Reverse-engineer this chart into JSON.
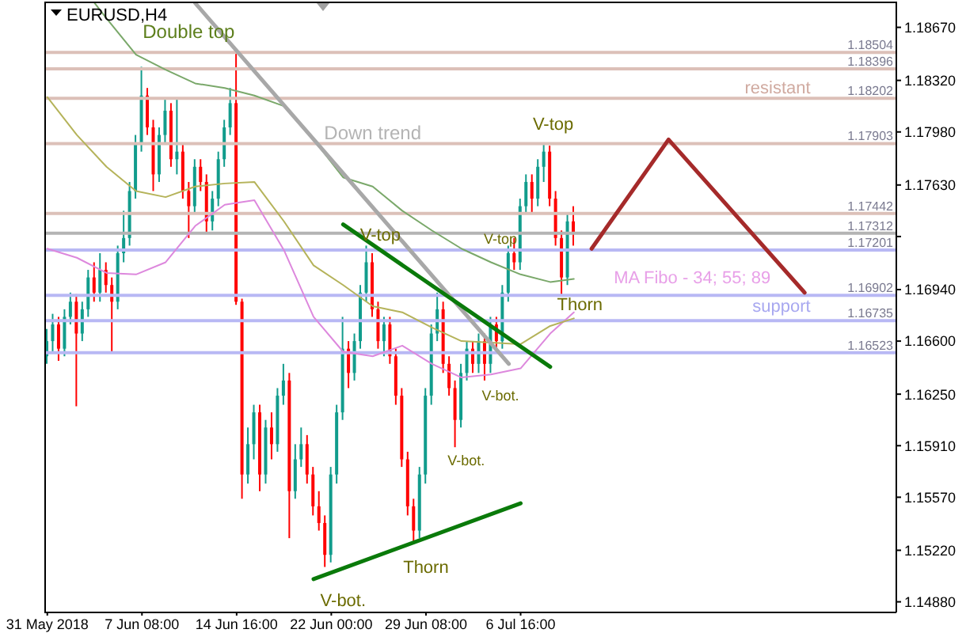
{
  "chart_data": {
    "type": "candlestick",
    "title": "EURUSD,H4",
    "categories": [
      "31 May 2018",
      null,
      null,
      null,
      null,
      null,
      null,
      null,
      null,
      null,
      null,
      null,
      null,
      null,
      null,
      null,
      "7 Jun 08:00",
      null,
      null,
      null,
      null,
      null,
      null,
      null,
      null,
      null,
      null,
      null,
      null,
      null,
      null,
      null,
      "14 Jun 16:00",
      null,
      null,
      null,
      null,
      null,
      null,
      null,
      null,
      null,
      null,
      null,
      null,
      null,
      null,
      null,
      "22 Jun 00:00",
      null,
      null,
      null,
      null,
      null,
      null,
      null,
      null,
      null,
      null,
      null,
      null,
      null,
      null,
      null,
      "29 Jun 08:00",
      null,
      null,
      null,
      null,
      null,
      null,
      null,
      null,
      null,
      null,
      null,
      null,
      null,
      null,
      null,
      "6 Jul 16:00",
      null,
      null,
      null,
      null,
      null,
      null,
      null,
      null,
      null,
      null,
      null,
      null,
      null,
      null,
      null,
      null,
      null,
      null,
      null,
      null,
      null,
      null,
      null,
      null,
      null,
      null,
      null,
      null,
      null,
      null,
      null,
      null,
      null,
      null,
      null,
      null,
      null,
      null,
      null,
      null,
      null,
      null,
      null,
      null,
      null,
      null,
      null,
      null,
      null,
      null,
      null,
      null,
      null,
      null,
      null,
      null,
      null,
      null,
      null,
      null,
      null,
      null,
      null
    ],
    "ohlc": [
      [
        1.165,
        1.1668,
        1.1645,
        1.166
      ],
      [
        1.166,
        1.1678,
        1.1653,
        1.1671
      ],
      [
        1.1671,
        1.1676,
        1.1647,
        1.1655
      ],
      [
        1.1655,
        1.1681,
        1.165,
        1.1676
      ],
      [
        1.1676,
        1.1692,
        1.1671,
        1.1686
      ],
      [
        1.1686,
        1.1691,
        1.1617,
        1.1665
      ],
      [
        1.1665,
        1.1686,
        1.166,
        1.1681
      ],
      [
        1.1681,
        1.1707,
        1.1676,
        1.1702
      ],
      [
        1.1702,
        1.1712,
        1.1686,
        1.1692
      ],
      [
        1.1692,
        1.1718,
        1.1686,
        1.1707
      ],
      [
        1.1707,
        1.1712,
        1.1692,
        1.1697
      ],
      [
        1.1697,
        1.1702,
        1.1653,
        1.1686
      ],
      [
        1.1686,
        1.1723,
        1.1681,
        1.1718
      ],
      [
        1.1718,
        1.1746,
        1.1712,
        1.1728
      ],
      [
        1.1728,
        1.1765,
        1.1723,
        1.1759
      ],
      [
        1.1759,
        1.1796,
        1.1754,
        1.1791
      ],
      [
        1.1791,
        1.1841,
        1.1785,
        1.1822
      ],
      [
        1.1822,
        1.1827,
        1.1796,
        1.1801
      ],
      [
        1.1801,
        1.1806,
        1.1759,
        1.177
      ],
      [
        1.177,
        1.1801,
        1.1765,
        1.1796
      ],
      [
        1.1796,
        1.182,
        1.1791,
        1.1812
      ],
      [
        1.1812,
        1.1817,
        1.1775,
        1.178
      ],
      [
        1.178,
        1.182,
        1.177,
        1.1785
      ],
      [
        1.1785,
        1.1791,
        1.1754,
        1.1759
      ],
      [
        1.1759,
        1.1765,
        1.1728,
        1.1749
      ],
      [
        1.1749,
        1.178,
        1.1744,
        1.1775
      ],
      [
        1.1775,
        1.178,
        1.1759,
        1.1765
      ],
      [
        1.1765,
        1.177,
        1.1731,
        1.1739
      ],
      [
        1.1739,
        1.1759,
        1.1733,
        1.1754
      ],
      [
        1.1754,
        1.1785,
        1.1749,
        1.178
      ],
      [
        1.178,
        1.1806,
        1.1775,
        1.1801
      ],
      [
        1.1801,
        1.1827,
        1.1796,
        1.1817
      ],
      [
        1.1817,
        1.185,
        1.1684,
        1.1686
      ],
      [
        1.1686,
        1.1688,
        1.1556,
        1.1572
      ],
      [
        1.1572,
        1.1603,
        1.1566,
        1.1592
      ],
      [
        1.1592,
        1.1618,
        1.1582,
        1.1613
      ],
      [
        1.1613,
        1.1618,
        1.1561,
        1.1572
      ],
      [
        1.1572,
        1.1608,
        1.1566,
        1.1603
      ],
      [
        1.1603,
        1.1613,
        1.1582,
        1.1592
      ],
      [
        1.1592,
        1.1629,
        1.1587,
        1.1624
      ],
      [
        1.1624,
        1.1645,
        1.1618,
        1.1634
      ],
      [
        1.1634,
        1.1639,
        1.153,
        1.1561
      ],
      [
        1.1561,
        1.1592,
        1.1556,
        1.1582
      ],
      [
        1.1582,
        1.1603,
        1.1577,
        1.1592
      ],
      [
        1.1592,
        1.1598,
        1.1566,
        1.1572
      ],
      [
        1.1572,
        1.1577,
        1.1545,
        1.1551
      ],
      [
        1.1551,
        1.1561,
        1.1535,
        1.154
      ],
      [
        1.154,
        1.1545,
        1.1511,
        1.1519
      ],
      [
        1.1519,
        1.1577,
        1.1514,
        1.1572
      ],
      [
        1.1572,
        1.1618,
        1.1566,
        1.1613
      ],
      [
        1.1613,
        1.1676,
        1.1608,
        1.1655
      ],
      [
        1.1655,
        1.166,
        1.1629,
        1.1639
      ],
      [
        1.1639,
        1.1665,
        1.1634,
        1.166
      ],
      [
        1.166,
        1.1697,
        1.1655,
        1.1692
      ],
      [
        1.1692,
        1.1723,
        1.1686,
        1.1712
      ],
      [
        1.1712,
        1.1718,
        1.1676,
        1.1681
      ],
      [
        1.1681,
        1.1686,
        1.1655,
        1.166
      ],
      [
        1.166,
        1.1676,
        1.165,
        1.1671
      ],
      [
        1.1671,
        1.1676,
        1.1645,
        1.165
      ],
      [
        1.165,
        1.1655,
        1.1618,
        1.1624
      ],
      [
        1.1624,
        1.1629,
        1.1577,
        1.1582
      ],
      [
        1.1582,
        1.1587,
        1.1545,
        1.1551
      ],
      [
        1.1551,
        1.1556,
        1.1528,
        1.1535
      ],
      [
        1.1535,
        1.1577,
        1.153,
        1.1572
      ],
      [
        1.1572,
        1.1629,
        1.1566,
        1.1624
      ],
      [
        1.1624,
        1.1671,
        1.1618,
        1.1665
      ],
      [
        1.1665,
        1.1692,
        1.166,
        1.1681
      ],
      [
        1.1681,
        1.1686,
        1.1639,
        1.1645
      ],
      [
        1.1645,
        1.165,
        1.1624,
        1.1629
      ],
      [
        1.1629,
        1.1634,
        1.159,
        1.1608
      ],
      [
        1.1608,
        1.1645,
        1.1603,
        1.1639
      ],
      [
        1.1639,
        1.166,
        1.1634,
        1.1655
      ],
      [
        1.1655,
        1.166,
        1.1639,
        1.1645
      ],
      [
        1.1645,
        1.1665,
        1.1639,
        1.166
      ],
      [
        1.166,
        1.1665,
        1.1634,
        1.1645
      ],
      [
        1.1645,
        1.1676,
        1.1639,
        1.1671
      ],
      [
        1.1671,
        1.1676,
        1.1655,
        1.166
      ],
      [
        1.166,
        1.1697,
        1.1655,
        1.1692
      ],
      [
        1.1692,
        1.1723,
        1.1686,
        1.1718
      ],
      [
        1.1718,
        1.1728,
        1.1707,
        1.1712
      ],
      [
        1.1712,
        1.1754,
        1.1707,
        1.1749
      ],
      [
        1.1749,
        1.177,
        1.1744,
        1.1765
      ],
      [
        1.1765,
        1.177,
        1.1744,
        1.1754
      ],
      [
        1.1754,
        1.178,
        1.1749,
        1.1775
      ],
      [
        1.1775,
        1.1791,
        1.1765,
        1.1785
      ],
      [
        1.1785,
        1.1789,
        1.1749,
        1.1754
      ],
      [
        1.1754,
        1.1759,
        1.1723,
        1.1728
      ],
      [
        1.1728,
        1.1733,
        1.169,
        1.1702
      ],
      [
        1.1702,
        1.1744,
        1.1697,
        1.1739
      ],
      [
        1.1739,
        1.1749,
        1.1723,
        1.17312
      ],
      null,
      null,
      null,
      null,
      null,
      null,
      null,
      null,
      null,
      null,
      null,
      null,
      null,
      null,
      null,
      null,
      null,
      null,
      null,
      null,
      null,
      null,
      null,
      null,
      null,
      null,
      null,
      null,
      null,
      null,
      null,
      null,
      null,
      null,
      null,
      null,
      null,
      null,
      null,
      null,
      null,
      null,
      null,
      null,
      null,
      null,
      null,
      null,
      null,
      null,
      null,
      null,
      null,
      null
    ],
    "colors": [
      "#119c8c",
      "#119c8c",
      "#ff0000",
      "#119c8c",
      "#119c8c",
      "#ff0000",
      "#119c8c",
      "#119c8c",
      "#ff0000",
      "#119c8c",
      "#ff0000",
      "#ff0000",
      "#119c8c",
      "#119c8c",
      "#119c8c",
      "#119c8c",
      "#119c8c",
      "#ff0000",
      "#ff0000",
      "#119c8c",
      "#119c8c",
      "#ff0000",
      "#119c8c",
      "#ff0000",
      "#ff0000",
      "#119c8c",
      "#ff0000",
      "#ff0000",
      "#119c8c",
      "#119c8c",
      "#119c8c",
      "#119c8c",
      "#ff0000",
      "#ff0000",
      "#119c8c",
      "#119c8c",
      "#ff0000",
      "#119c8c",
      "#ff0000",
      "#119c8c",
      "#119c8c",
      "#ff0000",
      "#119c8c",
      "#119c8c",
      "#ff0000",
      "#ff0000",
      "#ff0000",
      "#ff0000",
      "#119c8c",
      "#119c8c",
      "#119c8c",
      "#ff0000",
      "#119c8c",
      "#119c8c",
      "#119c8c",
      "#ff0000",
      "#ff0000",
      "#119c8c",
      "#ff0000",
      "#ff0000",
      "#ff0000",
      "#ff0000",
      "#ff0000",
      "#119c8c",
      "#119c8c",
      "#119c8c",
      "#119c8c",
      "#ff0000",
      "#ff0000",
      "#ff0000",
      "#119c8c",
      "#119c8c",
      "#ff0000",
      "#119c8c",
      "#ff0000",
      "#119c8c",
      "#ff0000",
      "#119c8c",
      "#119c8c",
      "#ff0000",
      "#119c8c",
      "#119c8c",
      "#ff0000",
      "#119c8c",
      "#119c8c",
      "#ff0000",
      "#ff0000",
      "#ff0000",
      "#119c8c",
      "#ff0000",
      null,
      null,
      null,
      null,
      null,
      null,
      null,
      null,
      null,
      null,
      null,
      null,
      null,
      null,
      null,
      null,
      null,
      null,
      null,
      null,
      null,
      null,
      null,
      null,
      null,
      null,
      null,
      null,
      null,
      null,
      null,
      null,
      null,
      null,
      null,
      null,
      null,
      null,
      null,
      null,
      null,
      null,
      null,
      null,
      null,
      null,
      null,
      null,
      null,
      null,
      null,
      null,
      null,
      null
    ],
    "series": [
      {
        "type": "line",
        "color": "#dd88dd",
        "values": [
          1.1721,
          null,
          null,
          null,
          null,
          1.1715,
          null,
          null,
          null,
          null,
          1.1705,
          null,
          null,
          null,
          null,
          1.1704,
          null,
          null,
          null,
          null,
          1.1712,
          null,
          null,
          null,
          null,
          1.1736,
          null,
          null,
          null,
          null,
          1.175,
          null,
          null,
          null,
          null,
          1.1753,
          null,
          null,
          null,
          null,
          1.172,
          null,
          null,
          null,
          null,
          1.1676,
          null,
          null,
          null,
          null,
          1.1653,
          null,
          null,
          null,
          null,
          1.165,
          null,
          null,
          null,
          null,
          1.1657,
          null,
          null,
          null,
          null,
          1.1645,
          null,
          null,
          null,
          null,
          1.1636,
          null,
          null,
          null,
          null,
          1.1638,
          null,
          null,
          null,
          null,
          1.1642,
          null,
          null,
          null,
          null,
          1.1665,
          null,
          null,
          null,
          1.1679,
          null,
          null,
          null,
          null,
          null,
          null,
          null,
          null,
          null,
          null,
          null,
          null,
          null,
          null,
          null,
          null,
          null,
          null,
          null,
          null,
          null,
          null,
          null,
          null,
          null,
          null,
          null,
          null,
          null,
          null,
          null,
          null,
          null,
          null,
          null,
          null,
          null,
          null,
          null,
          null,
          null,
          null,
          null,
          null,
          null,
          null,
          null,
          null,
          null,
          null,
          null,
          null,
          null,
          null
        ]
      },
      {
        "type": "line",
        "color": "#b5b35a",
        "values": [
          1.1821,
          null,
          null,
          null,
          null,
          1.1796,
          null,
          null,
          null,
          null,
          1.1775,
          null,
          null,
          null,
          null,
          1.1759,
          null,
          null,
          null,
          null,
          1.1755,
          null,
          null,
          null,
          null,
          1.1762,
          null,
          null,
          null,
          null,
          1.1764,
          null,
          null,
          null,
          null,
          1.1765,
          null,
          null,
          null,
          null,
          1.1739,
          null,
          null,
          null,
          null,
          1.171,
          null,
          null,
          null,
          null,
          1.1697,
          null,
          null,
          null,
          null,
          1.1683,
          null,
          null,
          null,
          null,
          1.1679,
          null,
          null,
          null,
          null,
          1.1669,
          null,
          null,
          null,
          null,
          1.166,
          null,
          null,
          null,
          null,
          1.1659,
          null,
          null,
          null,
          null,
          1.1658,
          null,
          null,
          null,
          null,
          1.167,
          null,
          null,
          null,
          1.1675,
          null,
          null,
          null,
          null,
          null,
          null,
          null,
          null,
          null,
          null,
          null,
          null,
          null,
          null,
          null,
          null,
          null,
          null,
          null,
          null,
          null,
          null,
          null,
          null,
          null,
          null,
          null,
          null,
          null,
          null,
          null,
          null,
          null,
          null,
          null,
          null,
          null,
          null,
          null,
          null,
          null,
          null,
          null,
          null,
          null,
          null,
          null,
          null,
          null,
          null,
          null,
          null,
          null,
          null
        ]
      },
      {
        "type": "line",
        "color": "#7aa86a",
        "values": [
          null,
          null,
          null,
          null,
          null,
          null,
          null,
          null,
          1.1883,
          null,
          1.1873,
          null,
          null,
          null,
          null,
          1.1849,
          null,
          null,
          null,
          null,
          1.1839,
          null,
          null,
          null,
          null,
          1.183,
          null,
          null,
          null,
          null,
          1.1827,
          null,
          null,
          null,
          null,
          1.1822,
          null,
          null,
          null,
          null,
          1.1815,
          null,
          null,
          null,
          null,
          1.1793,
          null,
          null,
          null,
          null,
          1.1768,
          null,
          null,
          null,
          null,
          1.1762,
          null,
          null,
          null,
          null,
          1.1746,
          null,
          null,
          null,
          null,
          1.1733,
          null,
          null,
          null,
          null,
          1.1721,
          null,
          null,
          null,
          null,
          1.1712,
          null,
          null,
          null,
          null,
          1.1704,
          null,
          null,
          null,
          null,
          1.1699,
          null,
          null,
          null,
          1.1701,
          null,
          null,
          null,
          null,
          null,
          null,
          null,
          null,
          null,
          null,
          null,
          null,
          null,
          null,
          null,
          null,
          null,
          null,
          null,
          null,
          null,
          null,
          null,
          null,
          null,
          null,
          null,
          null,
          null,
          null,
          null,
          null,
          null,
          null,
          null,
          null,
          null,
          null,
          null,
          null,
          null,
          null,
          null,
          null,
          null,
          null,
          null,
          null,
          null,
          null,
          null,
          null,
          null,
          null
        ]
      },
      {
        "type": "line",
        "color": "#a8a8a8",
        "values": [
          null,
          null,
          null,
          null,
          null,
          null,
          null,
          null,
          null,
          null,
          null,
          null,
          null,
          null,
          null,
          null,
          null,
          null,
          null,
          null,
          null,
          null,
          null,
          null,
          null,
          1.1883,
          null,
          null,
          null,
          null,
          null,
          null,
          null,
          null,
          null,
          null,
          null,
          null,
          null,
          null,
          null,
          null,
          null,
          null,
          null,
          null,
          null,
          null,
          null,
          null,
          null,
          null,
          null,
          null,
          null,
          null,
          null,
          null,
          null,
          null,
          null,
          null,
          null,
          null,
          null,
          null,
          null,
          null,
          null,
          null,
          null,
          null,
          null,
          null,
          null,
          null,
          null,
          null,
          1.1645,
          null,
          null,
          null,
          null,
          null,
          null,
          null,
          null,
          null,
          null,
          null,
          null,
          null,
          null,
          null,
          null,
          null,
          null,
          null,
          null,
          null,
          null,
          null,
          null,
          null,
          null,
          null,
          null,
          null,
          null,
          null,
          null,
          null,
          null,
          null,
          null,
          null,
          null,
          null,
          null,
          null,
          null,
          null,
          null,
          null,
          null,
          null,
          null,
          null,
          null,
          null,
          null,
          null,
          null,
          null,
          null,
          null,
          null,
          null,
          null,
          null,
          null,
          null,
          null,
          null
        ]
      },
      {
        "type": "line",
        "color": "#0a7a0a",
        "values": [
          null,
          null,
          null,
          null,
          null,
          null,
          null,
          null,
          null,
          null,
          null,
          null,
          null,
          null,
          null,
          null,
          null,
          null,
          null,
          null,
          null,
          null,
          null,
          null,
          null,
          null,
          null,
          null,
          null,
          null,
          null,
          null,
          null,
          null,
          null,
          null,
          null,
          null,
          null,
          null,
          null,
          null,
          null,
          null,
          null,
          null,
          null,
          null,
          null,
          null,
          1.1737,
          null,
          null,
          null,
          null,
          null,
          null,
          null,
          null,
          null,
          null,
          null,
          null,
          null,
          null,
          null,
          null,
          null,
          null,
          null,
          null,
          null,
          null,
          null,
          null,
          null,
          null,
          null,
          null,
          null,
          null,
          null,
          null,
          null,
          null,
          1.1643,
          null,
          null,
          null,
          null,
          null,
          null,
          null,
          null,
          null,
          null,
          null,
          null,
          null,
          null,
          null,
          null,
          null,
          null,
          null,
          null,
          null,
          null,
          null,
          null,
          null,
          null,
          null,
          null,
          null,
          null,
          null,
          null,
          null,
          null,
          null,
          null,
          null,
          null,
          null,
          null,
          null,
          null,
          null,
          null,
          null,
          null,
          null,
          null,
          null,
          null,
          null,
          null,
          null,
          null,
          null,
          null,
          null,
          null
        ]
      },
      {
        "type": "line",
        "color": "#0a7a0a",
        "values": [
          null,
          null,
          null,
          null,
          null,
          null,
          null,
          null,
          null,
          null,
          null,
          null,
          null,
          null,
          null,
          null,
          null,
          null,
          null,
          null,
          null,
          null,
          null,
          null,
          null,
          null,
          null,
          null,
          null,
          null,
          null,
          null,
          null,
          null,
          null,
          null,
          null,
          null,
          null,
          null,
          null,
          null,
          null,
          null,
          null,
          1.1503,
          null,
          null,
          null,
          null,
          null,
          null,
          null,
          null,
          null,
          null,
          null,
          null,
          null,
          null,
          null,
          null,
          null,
          null,
          null,
          null,
          null,
          null,
          null,
          null,
          null,
          null,
          null,
          null,
          null,
          null,
          null,
          null,
          null,
          null,
          1.1553,
          null,
          null,
          null,
          null,
          null,
          null,
          null,
          null,
          null,
          null,
          null,
          null,
          null,
          null,
          null,
          null,
          null,
          null,
          null,
          null,
          null,
          null,
          null,
          null,
          null,
          null,
          null,
          null,
          null,
          null,
          null,
          null,
          null,
          null,
          null,
          null,
          null,
          null,
          null,
          null,
          null,
          null,
          null,
          null,
          null,
          null,
          null,
          null,
          null,
          null,
          null,
          null,
          null,
          null,
          null,
          null,
          null,
          null,
          null,
          null,
          null,
          null,
          null
        ]
      },
      {
        "type": "line",
        "color": "#a52a2a",
        "values": [
          null,
          null,
          null,
          null,
          null,
          null,
          null,
          null,
          null,
          null,
          null,
          null,
          null,
          null,
          null,
          null,
          null,
          null,
          null,
          null,
          null,
          null,
          null,
          null,
          null,
          null,
          null,
          null,
          null,
          null,
          null,
          null,
          null,
          null,
          null,
          null,
          null,
          null,
          null,
          null,
          null,
          null,
          null,
          null,
          null,
          null,
          null,
          null,
          null,
          null,
          null,
          null,
          null,
          null,
          null,
          null,
          null,
          null,
          null,
          null,
          null,
          null,
          null,
          null,
          null,
          null,
          null,
          null,
          null,
          null,
          null,
          null,
          null,
          null,
          null,
          null,
          null,
          null,
          null,
          null,
          null,
          null,
          null,
          null,
          null,
          null,
          null,
          null,
          null,
          null,
          null,
          null,
          1.1721,
          null,
          null,
          null,
          null,
          null,
          null,
          null,
          null,
          null,
          null,
          null,
          null,
          1.1793,
          null,
          null,
          null,
          null,
          null,
          null,
          null,
          null,
          null,
          null,
          null,
          null,
          null,
          null,
          null,
          null,
          null,
          null,
          null,
          null,
          null,
          null,
          1.1692,
          null,
          null,
          null,
          null,
          null,
          null,
          null,
          null,
          null,
          null,
          null,
          null,
          null,
          null,
          null
        ]
      }
    ],
    "ylim": [
      1.1481,
      1.1884
    ],
    "yticks": [
      {
        "value": 1.1867,
        "label": "1.18670"
      },
      {
        "value": 1.1832,
        "label": "1.18320"
      },
      {
        "value": 1.1798,
        "label": "1.17980"
      },
      {
        "value": 1.1763,
        "label": "1.17630"
      },
      {
        "value": 1.1729,
        "label": null
      },
      {
        "value": 1.1694,
        "label": "1.16940"
      },
      {
        "value": 1.166,
        "label": "1.16600"
      },
      {
        "value": 1.1625,
        "label": "1.16250"
      },
      {
        "value": 1.1591,
        "label": "1.15910"
      },
      {
        "value": 1.1557,
        "label": "1.15570"
      },
      {
        "value": 1.1522,
        "label": "1.15220"
      },
      {
        "value": 1.1488,
        "label": "1.14880"
      }
    ],
    "ref_lines": [
      {
        "axis": "y",
        "value": 1.18504,
        "label": "1.18504",
        "color": "#dcc0b8"
      },
      {
        "axis": "y",
        "value": 1.18396,
        "label": "1.18396",
        "color": "#dcc0b8"
      },
      {
        "axis": "y",
        "value": 1.18202,
        "label": "1.18202",
        "color": "#dcc0b8"
      },
      {
        "axis": "y",
        "value": 1.17903,
        "label": "1.17903",
        "color": "#dcc0b8"
      },
      {
        "axis": "y",
        "value": 1.17442,
        "label": "1.17442",
        "color": "#dcc0b8"
      },
      {
        "axis": "y",
        "value": 1.17312,
        "label": "1.17312",
        "color": "#b4b4b4"
      },
      {
        "axis": "y",
        "value": 1.17201,
        "label": "1.17201",
        "color": "#b8b8f4"
      },
      {
        "axis": "y",
        "value": 1.16902,
        "label": "1.16902",
        "color": "#b8b8f4"
      },
      {
        "axis": "y",
        "value": 1.16735,
        "label": "1.16735",
        "color": "#b8b8f4"
      },
      {
        "axis": "y",
        "value": 1.16523,
        "label": "1.16523",
        "color": "#b8b8f4"
      }
    ],
    "annotations": [
      "Double top",
      "Down trend",
      "V-top",
      "V-top",
      "V-top",
      "V-bot.",
      "V-bot.",
      "V-bot.",
      "Thorn",
      "Thorn",
      "MA Fibo - 34; 55; 89",
      "resistant",
      "support"
    ]
  }
}
